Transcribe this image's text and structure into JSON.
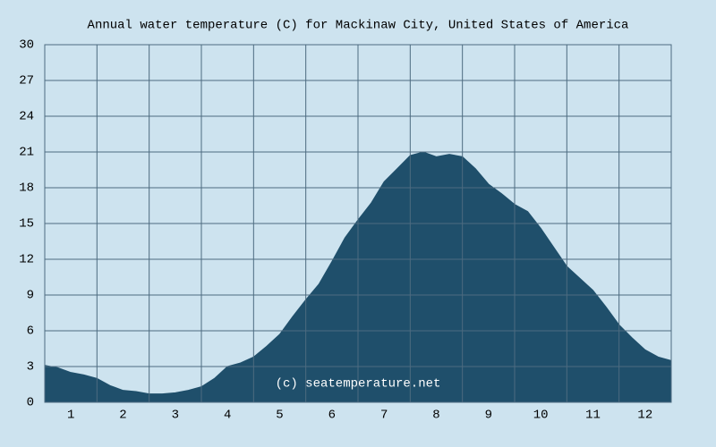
{
  "chart_data": {
    "type": "area",
    "title": "Annual water temperature (C) for Mackinaw City, United States of America",
    "annotation": "(c) seatemperature.net",
    "x": [
      0.5,
      0.75,
      1,
      1.25,
      1.5,
      1.75,
      2,
      2.25,
      2.5,
      2.75,
      3,
      3.25,
      3.5,
      3.75,
      4,
      4.25,
      4.5,
      4.75,
      5,
      5.25,
      5.5,
      5.75,
      6,
      6.25,
      6.5,
      6.75,
      7,
      7.25,
      7.5,
      7.75,
      8,
      8.25,
      8.5,
      8.75,
      9,
      9.25,
      9.5,
      9.75,
      10,
      10.25,
      10.5,
      10.75,
      11,
      11.25,
      11.5,
      11.75,
      12,
      12.25,
      12.5
    ],
    "values": [
      3.1,
      2.9,
      2.5,
      2.3,
      2.0,
      1.4,
      1.0,
      0.9,
      0.7,
      0.7,
      0.8,
      1.0,
      1.3,
      2.0,
      3.0,
      3.3,
      3.8,
      4.7,
      5.7,
      7.2,
      8.6,
      9.9,
      11.8,
      13.8,
      15.3,
      16.7,
      18.5,
      19.6,
      20.7,
      21.0,
      20.6,
      20.8,
      20.6,
      19.6,
      18.3,
      17.5,
      16.6,
      16.0,
      14.6,
      13.0,
      11.4,
      10.4,
      9.4,
      8.0,
      6.5,
      5.4,
      4.4,
      3.8,
      3.5
    ],
    "color": "#1f4f6b",
    "xlim": [
      0.5,
      12.5
    ],
    "xticks": [
      1,
      2,
      3,
      4,
      5,
      6,
      7,
      8,
      9,
      10,
      11,
      12
    ],
    "ylim": [
      0,
      30
    ],
    "yticks": [
      0,
      3,
      6,
      9,
      12,
      15,
      18,
      21,
      24,
      27,
      30
    ],
    "grid": true
  }
}
